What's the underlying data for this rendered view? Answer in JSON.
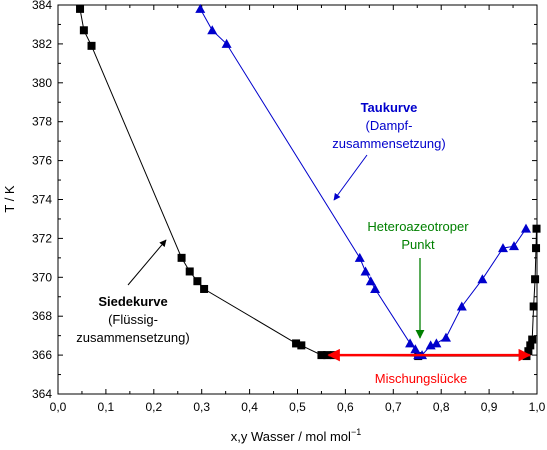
{
  "chart_data": {
    "type": "line",
    "xlabel": "x,y Wasser / mol mol",
    "xlabel_sup": "−1",
    "ylabel": "T / K",
    "xlim": [
      0.0,
      1.0
    ],
    "ylim": [
      364,
      384
    ],
    "x_ticks": [
      "0,0",
      "0,1",
      "0,2",
      "0,3",
      "0,4",
      "0,5",
      "0,6",
      "0,7",
      "0,8",
      "0,9",
      "1,0"
    ],
    "y_ticks": [
      "364",
      "366",
      "368",
      "370",
      "372",
      "374",
      "376",
      "378",
      "380",
      "382",
      "384"
    ],
    "grid": false,
    "series": [
      {
        "key": "siedekurve",
        "marker": "square",
        "color": "#000000",
        "points": [
          [
            0.046,
            383.8
          ],
          [
            0.054,
            382.7
          ],
          [
            0.07,
            381.9
          ],
          [
            0.258,
            371.0
          ],
          [
            0.275,
            370.3
          ],
          [
            0.291,
            369.8
          ],
          [
            0.305,
            369.4
          ],
          [
            0.497,
            366.6
          ],
          [
            0.508,
            366.5
          ],
          [
            0.55,
            366.0
          ],
          [
            0.562,
            366.0
          ],
          [
            0.576,
            366.0
          ],
          [
            0.752,
            365.95
          ],
          [
            0.978,
            365.95
          ],
          [
            0.982,
            366.2
          ],
          [
            0.986,
            366.5
          ],
          [
            0.99,
            366.8
          ],
          [
            0.993,
            368.5
          ],
          [
            0.996,
            369.9
          ],
          [
            0.998,
            371.5
          ],
          [
            0.999,
            372.5
          ]
        ]
      },
      {
        "key": "taukurve",
        "marker": "triangle",
        "color": "#0000cc",
        "points": [
          [
            0.297,
            383.8
          ],
          [
            0.322,
            382.7
          ],
          [
            0.352,
            382.0
          ],
          [
            0.63,
            371.0
          ],
          [
            0.642,
            370.3
          ],
          [
            0.653,
            369.8
          ],
          [
            0.662,
            369.4
          ],
          [
            0.735,
            366.6
          ],
          [
            0.746,
            366.3
          ],
          [
            0.752,
            366.0
          ],
          [
            0.76,
            366.0
          ],
          [
            0.778,
            366.5
          ],
          [
            0.79,
            366.6
          ],
          [
            0.81,
            366.9
          ],
          [
            0.843,
            368.5
          ],
          [
            0.886,
            369.9
          ],
          [
            0.929,
            371.5
          ],
          [
            0.952,
            371.6
          ],
          [
            0.977,
            372.5
          ]
        ]
      }
    ],
    "annotations": {
      "taukurve_title": "Taukurve",
      "taukurve_sub1": "(Dampf-",
      "taukurve_sub2": "zusammensetzung)",
      "siedekurve_title": "Siedekurve",
      "siedekurve_sub1": "(Flüssig-",
      "siedekurve_sub2": "zusammensetzung)",
      "hetero_line1": "Heteroazeotroper",
      "hetero_line2": "Punkt",
      "mischung": "Mischungslücke"
    },
    "colors": {
      "siedekurve": "#000000",
      "taukurve": "#0000cc",
      "hetero": "#008000",
      "mischung": "#ff0000"
    }
  }
}
